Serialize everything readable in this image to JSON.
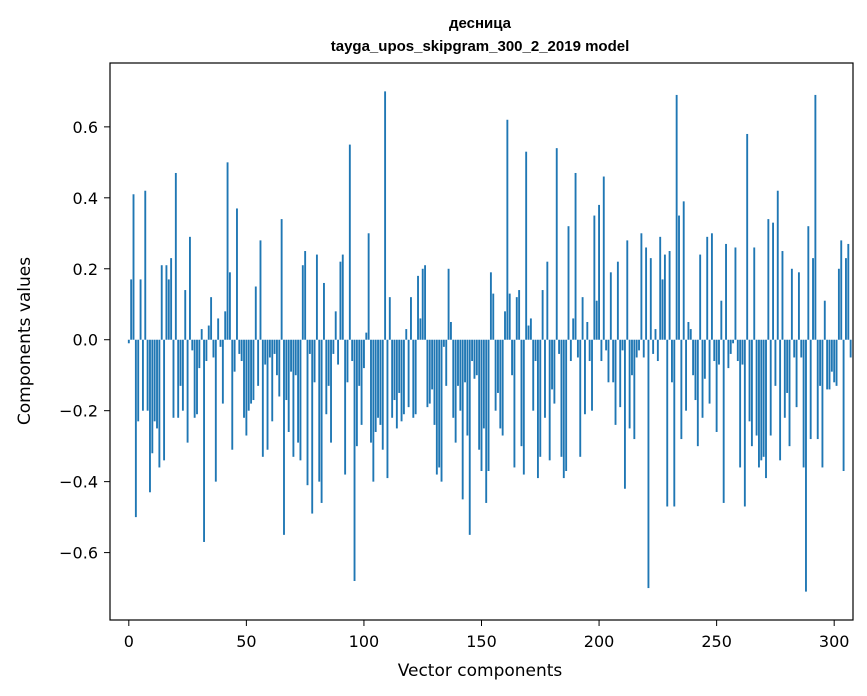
{
  "chart_data": {
    "type": "bar",
    "title_lines": [
      "десница",
      "tayga_upos_skipgram_300_2_2019 model"
    ],
    "xlabel": "Vector components",
    "ylabel": "Components values",
    "xlim": [
      -8,
      308
    ],
    "ylim": [
      -0.79,
      0.78
    ],
    "x_ticks": [
      0,
      50,
      100,
      150,
      200,
      250,
      300
    ],
    "y_ticks": [
      -0.6,
      -0.4,
      -0.2,
      0.0,
      0.2,
      0.4,
      0.6
    ],
    "y_tick_labels": [
      "−0.6",
      "−0.4",
      "−0.2",
      "0.0",
      "0.2",
      "0.4",
      "0.6"
    ],
    "bar_color": "#1f77b4",
    "grid": false,
    "x_start": 0,
    "values": [
      -0.01,
      0.17,
      0.41,
      -0.5,
      -0.23,
      0.17,
      -0.2,
      0.42,
      -0.2,
      -0.43,
      -0.32,
      -0.23,
      -0.25,
      -0.36,
      0.21,
      -0.34,
      0.21,
      0.17,
      0.23,
      -0.22,
      0.47,
      -0.22,
      -0.13,
      -0.2,
      0.14,
      -0.29,
      0.29,
      -0.03,
      -0.22,
      -0.21,
      -0.08,
      0.03,
      -0.57,
      -0.06,
      0.04,
      0.12,
      -0.05,
      -0.4,
      0.06,
      -0.02,
      -0.18,
      0.08,
      0.5,
      0.19,
      -0.31,
      -0.09,
      0.37,
      -0.04,
      -0.06,
      -0.22,
      -0.27,
      -0.2,
      -0.18,
      -0.17,
      0.15,
      -0.13,
      0.28,
      -0.33,
      -0.07,
      -0.31,
      -0.05,
      -0.23,
      -0.04,
      -0.1,
      -0.16,
      0.34,
      -0.55,
      -0.17,
      -0.26,
      -0.09,
      -0.33,
      -0.1,
      -0.29,
      -0.34,
      0.21,
      0.25,
      -0.41,
      -0.04,
      -0.49,
      -0.12,
      0.24,
      -0.4,
      -0.46,
      0.16,
      -0.21,
      -0.13,
      -0.29,
      -0.04,
      0.08,
      -0.07,
      0.22,
      0.24,
      -0.38,
      -0.12,
      0.55,
      -0.06,
      -0.68,
      -0.3,
      -0.13,
      -0.24,
      -0.08,
      0.02,
      0.3,
      -0.29,
      -0.4,
      -0.26,
      -0.22,
      -0.24,
      -0.31,
      0.7,
      -0.39,
      0.12,
      -0.22,
      -0.17,
      -0.25,
      -0.15,
      -0.23,
      -0.21,
      0.03,
      -0.19,
      0.12,
      -0.22,
      -0.21,
      0.18,
      0.06,
      0.2,
      0.21,
      -0.19,
      -0.18,
      -0.14,
      -0.24,
      -0.38,
      -0.36,
      -0.4,
      -0.02,
      -0.13,
      0.2,
      0.05,
      -0.22,
      -0.29,
      -0.13,
      -0.2,
      -0.45,
      -0.12,
      -0.27,
      -0.55,
      -0.06,
      -0.11,
      -0.1,
      -0.31,
      -0.37,
      -0.25,
      -0.46,
      -0.37,
      0.19,
      0.13,
      -0.2,
      -0.15,
      -0.25,
      -0.27,
      0.08,
      0.62,
      0.13,
      -0.1,
      -0.36,
      0.12,
      0.14,
      -0.3,
      -0.38,
      0.53,
      0.04,
      0.06,
      -0.2,
      -0.06,
      -0.39,
      -0.33,
      0.14,
      -0.22,
      0.22,
      -0.34,
      -0.14,
      -0.18,
      0.54,
      -0.04,
      -0.33,
      -0.39,
      -0.37,
      0.32,
      -0.06,
      0.06,
      0.47,
      -0.05,
      -0.33,
      0.12,
      -0.21,
      0.05,
      -0.06,
      -0.2,
      0.35,
      0.11,
      0.38,
      -0.06,
      0.46,
      -0.03,
      -0.12,
      0.19,
      -0.12,
      -0.24,
      0.22,
      -0.19,
      -0.03,
      -0.42,
      0.28,
      -0.25,
      -0.1,
      -0.28,
      -0.05,
      -0.03,
      0.3,
      -0.05,
      0.26,
      -0.7,
      0.23,
      -0.04,
      0.03,
      -0.06,
      0.29,
      0.17,
      0.24,
      -0.47,
      0.25,
      -0.12,
      -0.47,
      0.69,
      0.35,
      -0.28,
      0.39,
      -0.2,
      0.05,
      0.03,
      -0.1,
      -0.17,
      -0.3,
      0.24,
      -0.22,
      -0.11,
      0.29,
      -0.18,
      0.3,
      -0.06,
      -0.26,
      -0.07,
      0.11,
      -0.46,
      0.27,
      -0.08,
      -0.04,
      -0.01,
      0.26,
      -0.06,
      -0.36,
      -0.07,
      -0.47,
      0.58,
      -0.23,
      -0.3,
      0.26,
      -0.27,
      -0.36,
      -0.34,
      -0.33,
      -0.39,
      0.34,
      -0.27,
      0.33,
      -0.13,
      0.42,
      -0.34,
      0.25,
      -0.22,
      -0.15,
      -0.3,
      0.2,
      -0.05,
      -0.19,
      0.19,
      -0.05,
      -0.36,
      -0.71,
      0.32,
      -0.28,
      0.23,
      0.69,
      -0.28,
      -0.13,
      -0.36,
      0.11,
      -0.14,
      -0.14,
      -0.09,
      -0.12,
      -0.13,
      0.2,
      0.28,
      -0.37,
      0.23,
      0.27,
      -0.05
    ]
  }
}
